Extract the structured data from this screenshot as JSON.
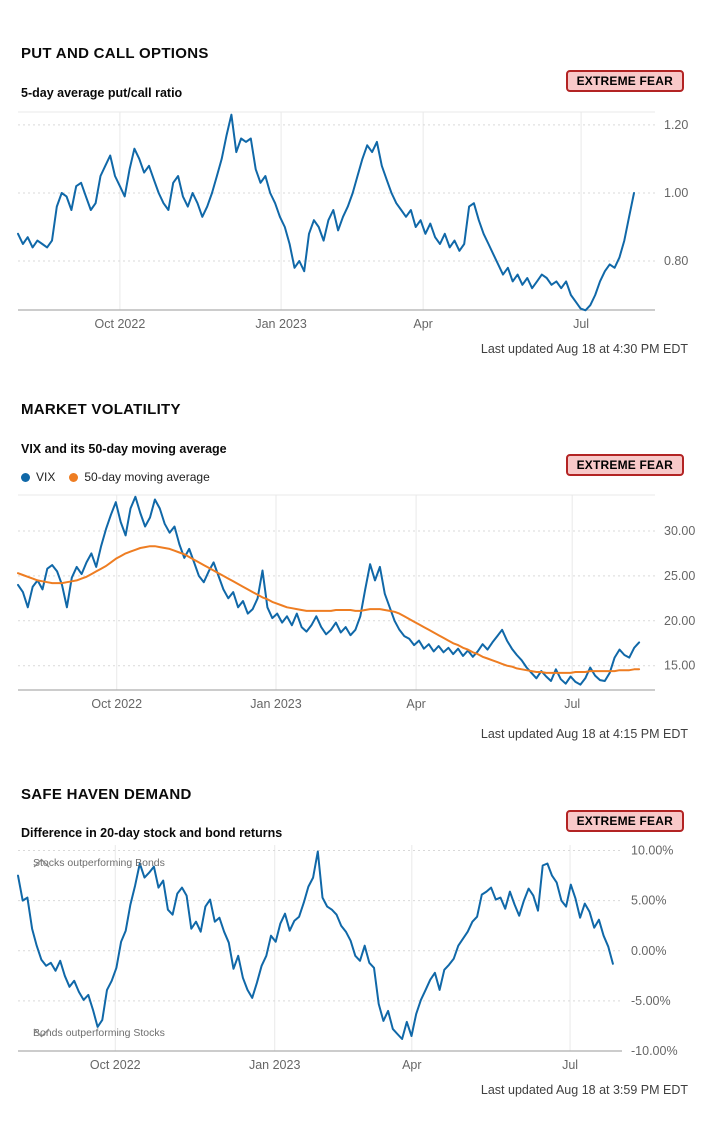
{
  "colors": {
    "blue_line": "#1068a8",
    "orange_line": "#ee7d22",
    "badge_bg": "#f8c9c9",
    "badge_border": "#b32424",
    "h_grid": "#d9d9d9",
    "v_grid": "#e9e9e9",
    "axis": "#aeaeae",
    "tick_text": "#666666",
    "annotation": "#6e6e6e"
  },
  "sections": [
    {
      "title": "PUT AND CALL OPTIONS",
      "subtitle": "5-day average put/call ratio",
      "status": "EXTREME FEAR",
      "last_updated": "Last updated Aug 18 at 4:30 PM EDT"
    },
    {
      "title": "MARKET VOLATILITY",
      "subtitle": "VIX and its 50-day moving average",
      "status": "EXTREME FEAR",
      "last_updated": "Last updated Aug 18 at 4:15 PM EDT",
      "legend": [
        {
          "label": "VIX",
          "color": "#1068a8"
        },
        {
          "label": "50-day moving average",
          "color": "#ee7d22"
        }
      ]
    },
    {
      "title": "SAFE HAVEN DEMAND",
      "subtitle": "Difference in 20-day stock and bond returns",
      "status": "EXTREME FEAR",
      "last_updated": "Last updated Aug 18 at 3:59 PM EDT",
      "annotations": {
        "top": "Stocks outperforming Bonds",
        "bottom": "Bonds outperforming Stocks"
      }
    }
  ],
  "chart_data": [
    {
      "id": "put-call",
      "type": "line",
      "title": "5-day average put/call ratio",
      "x_range": "Aug 2022 - Aug 2023",
      "ylim": [
        0.656,
        1.238
      ],
      "y_ticks": [
        {
          "value": 1.2,
          "label": "1.20"
        },
        {
          "value": 1.0,
          "label": "1.00"
        },
        {
          "value": 0.8,
          "label": "0.80"
        }
      ],
      "x_ticks": [
        {
          "pos": 0.16,
          "label": "Oct 2022"
        },
        {
          "pos": 0.413,
          "label": "Jan 2023"
        },
        {
          "pos": 0.636,
          "label": "Apr"
        },
        {
          "pos": 0.884,
          "label": "Jul"
        }
      ],
      "series": [
        {
          "name": "5-day average put/call ratio",
          "color": "#1068a8",
          "values": [
            0.88,
            0.85,
            0.87,
            0.84,
            0.86,
            0.85,
            0.84,
            0.86,
            0.96,
            1.0,
            0.99,
            0.95,
            1.02,
            1.03,
            0.99,
            0.95,
            0.97,
            1.05,
            1.08,
            1.11,
            1.05,
            1.02,
            0.99,
            1.07,
            1.13,
            1.1,
            1.06,
            1.08,
            1.04,
            1.0,
            0.97,
            0.95,
            1.03,
            1.05,
            0.99,
            0.96,
            1.0,
            0.97,
            0.93,
            0.96,
            1.0,
            1.05,
            1.1,
            1.17,
            1.23,
            1.12,
            1.16,
            1.15,
            1.16,
            1.07,
            1.03,
            1.05,
            1.0,
            0.97,
            0.93,
            0.9,
            0.85,
            0.78,
            0.8,
            0.77,
            0.88,
            0.92,
            0.9,
            0.86,
            0.92,
            0.95,
            0.89,
            0.93,
            0.96,
            1.0,
            1.05,
            1.1,
            1.14,
            1.12,
            1.15,
            1.08,
            1.04,
            1.0,
            0.97,
            0.95,
            0.93,
            0.95,
            0.9,
            0.92,
            0.88,
            0.91,
            0.87,
            0.85,
            0.88,
            0.84,
            0.86,
            0.83,
            0.85,
            0.96,
            0.97,
            0.92,
            0.88,
            0.85,
            0.82,
            0.79,
            0.76,
            0.78,
            0.74,
            0.76,
            0.73,
            0.75,
            0.72,
            0.74,
            0.76,
            0.75,
            0.73,
            0.74,
            0.72,
            0.74,
            0.7,
            0.68,
            0.66,
            0.655,
            0.67,
            0.7,
            0.74,
            0.77,
            0.79,
            0.78,
            0.81,
            0.86,
            0.93,
            1.0
          ]
        }
      ]
    },
    {
      "id": "vix",
      "type": "line",
      "title": "VIX and its 50-day moving average",
      "x_range": "Aug 2022 - Aug 2023",
      "ylim": [
        12.3,
        34.0
      ],
      "y_ticks": [
        {
          "value": 30,
          "label": "30.00"
        },
        {
          "value": 25,
          "label": "25.00"
        },
        {
          "value": 20,
          "label": "20.00"
        },
        {
          "value": 15,
          "label": "15.00"
        }
      ],
      "x_ticks": [
        {
          "pos": 0.155,
          "label": "Oct 2022"
        },
        {
          "pos": 0.405,
          "label": "Jan 2023"
        },
        {
          "pos": 0.625,
          "label": "Apr"
        },
        {
          "pos": 0.87,
          "label": "Jul"
        }
      ],
      "series": [
        {
          "name": "VIX",
          "color": "#1068a8",
          "values": [
            24.0,
            23.2,
            21.5,
            23.8,
            24.5,
            23.5,
            25.8,
            26.2,
            25.5,
            24.0,
            21.5,
            24.8,
            26.0,
            25.2,
            26.5,
            27.5,
            26.0,
            28.3,
            30.2,
            31.8,
            33.2,
            31.0,
            29.5,
            32.5,
            33.8,
            32.0,
            30.5,
            31.5,
            33.5,
            32.5,
            30.8,
            29.8,
            30.5,
            28.5,
            27.0,
            28.0,
            26.5,
            25.0,
            24.3,
            25.5,
            26.5,
            25.0,
            23.5,
            22.5,
            23.2,
            21.5,
            22.2,
            20.8,
            21.3,
            22.5,
            25.6,
            21.5,
            20.3,
            20.8,
            19.8,
            20.5,
            19.5,
            20.8,
            19.3,
            18.8,
            19.5,
            20.5,
            19.3,
            18.5,
            19.0,
            19.8,
            18.7,
            19.3,
            18.4,
            19.0,
            20.5,
            23.5,
            26.3,
            24.5,
            26.0,
            23.0,
            21.5,
            20.0,
            19.0,
            18.3,
            18.0,
            17.3,
            17.8,
            16.9,
            17.4,
            16.6,
            17.2,
            16.5,
            17.0,
            16.3,
            16.9,
            16.1,
            16.7,
            16.0,
            16.6,
            17.4,
            16.8,
            17.6,
            18.3,
            19.0,
            17.8,
            16.9,
            16.2,
            15.6,
            14.8,
            14.2,
            13.6,
            14.4,
            13.8,
            13.3,
            14.6,
            13.5,
            13.0,
            13.8,
            13.2,
            12.9,
            13.6,
            14.8,
            13.9,
            13.4,
            13.3,
            14.2,
            15.9,
            16.8,
            16.2,
            15.9,
            17.0,
            17.6
          ]
        },
        {
          "name": "50-day moving average",
          "color": "#ee7d22",
          "values": [
            25.3,
            25.1,
            24.9,
            24.7,
            24.5,
            24.4,
            24.3,
            24.2,
            24.2,
            24.2,
            24.3,
            24.4,
            24.5,
            24.7,
            24.9,
            25.2,
            25.5,
            25.8,
            26.1,
            26.5,
            26.9,
            27.2,
            27.5,
            27.7,
            27.9,
            28.1,
            28.2,
            28.3,
            28.3,
            28.2,
            28.1,
            28.0,
            27.8,
            27.6,
            27.4,
            27.1,
            26.8,
            26.5,
            26.2,
            25.9,
            25.6,
            25.3,
            25.0,
            24.7,
            24.4,
            24.1,
            23.8,
            23.5,
            23.2,
            22.9,
            22.6,
            22.4,
            22.1,
            21.9,
            21.7,
            21.5,
            21.4,
            21.3,
            21.2,
            21.1,
            21.1,
            21.1,
            21.1,
            21.1,
            21.1,
            21.2,
            21.2,
            21.2,
            21.2,
            21.1,
            21.1,
            21.2,
            21.3,
            21.3,
            21.3,
            21.2,
            21.1,
            21.0,
            20.8,
            20.5,
            20.2,
            19.9,
            19.6,
            19.3,
            19.0,
            18.7,
            18.4,
            18.1,
            17.8,
            17.5,
            17.3,
            17.0,
            16.8,
            16.5,
            16.3,
            16.0,
            15.8,
            15.6,
            15.4,
            15.2,
            15.0,
            14.9,
            14.7,
            14.6,
            14.5,
            14.4,
            14.3,
            14.3,
            14.2,
            14.2,
            14.2,
            14.2,
            14.2,
            14.2,
            14.3,
            14.3,
            14.3,
            14.4,
            14.4,
            14.4,
            14.4,
            14.4,
            14.4,
            14.5,
            14.5,
            14.5,
            14.6,
            14.6
          ]
        }
      ]
    },
    {
      "id": "safe-haven",
      "type": "line",
      "title": "Difference in 20-day stock and bond returns",
      "x_range": "Aug 2022 - Aug 2023",
      "ylim": [
        -10,
        10.55
      ],
      "y_ticks": [
        {
          "value": 10,
          "label": "10.00%"
        },
        {
          "value": 5,
          "label": "5.00%"
        },
        {
          "value": 0,
          "label": "0.00%"
        },
        {
          "value": -5,
          "label": "-5.00%"
        },
        {
          "value": -10,
          "label": "-10.00%"
        }
      ],
      "x_ticks": [
        {
          "pos": 0.161,
          "label": "Oct 2022"
        },
        {
          "pos": 0.425,
          "label": "Jan 2023"
        },
        {
          "pos": 0.652,
          "label": "Apr"
        },
        {
          "pos": 0.914,
          "label": "Jul"
        }
      ],
      "series": [
        {
          "name": "Difference in 20-day stock and bond returns",
          "color": "#1068a8",
          "values": [
            7.5,
            5.0,
            5.3,
            2.2,
            0.5,
            -0.9,
            -1.5,
            -1.2,
            -2.0,
            -1.0,
            -2.5,
            -3.6,
            -3.0,
            -4.1,
            -4.9,
            -4.4,
            -5.9,
            -7.6,
            -6.9,
            -3.9,
            -3.0,
            -1.7,
            0.9,
            2.0,
            4.6,
            6.5,
            8.7,
            7.3,
            7.8,
            8.4,
            6.3,
            7.0,
            4.1,
            3.6,
            5.7,
            6.3,
            5.5,
            2.2,
            2.9,
            1.9,
            4.4,
            5.1,
            2.9,
            3.3,
            1.9,
            0.8,
            -1.8,
            -0.5,
            -2.7,
            -3.9,
            -4.7,
            -3.2,
            -1.5,
            -0.5,
            1.5,
            0.9,
            2.7,
            3.7,
            2.0,
            3.0,
            3.4,
            4.8,
            6.4,
            7.3,
            9.9,
            5.3,
            4.4,
            4.1,
            3.6,
            2.5,
            1.9,
            1.0,
            -0.5,
            -1.0,
            0.5,
            -1.2,
            -1.7,
            -5.3,
            -7.0,
            -6.0,
            -7.8,
            -8.3,
            -8.8,
            -7.1,
            -8.5,
            -6.3,
            -4.9,
            -3.9,
            -2.9,
            -2.2,
            -3.9,
            -1.9,
            -1.4,
            -0.8,
            0.5,
            1.2,
            1.9,
            2.9,
            3.4,
            5.6,
            5.9,
            6.3,
            5.1,
            5.3,
            4.2,
            5.9,
            4.6,
            3.5,
            5.0,
            6.2,
            5.5,
            4.0,
            8.5,
            8.7,
            7.5,
            6.8,
            5.0,
            4.4,
            6.6,
            5.2,
            3.3,
            4.7,
            3.9,
            2.3,
            3.1,
            1.5,
            0.4,
            -1.3
          ]
        }
      ]
    }
  ]
}
